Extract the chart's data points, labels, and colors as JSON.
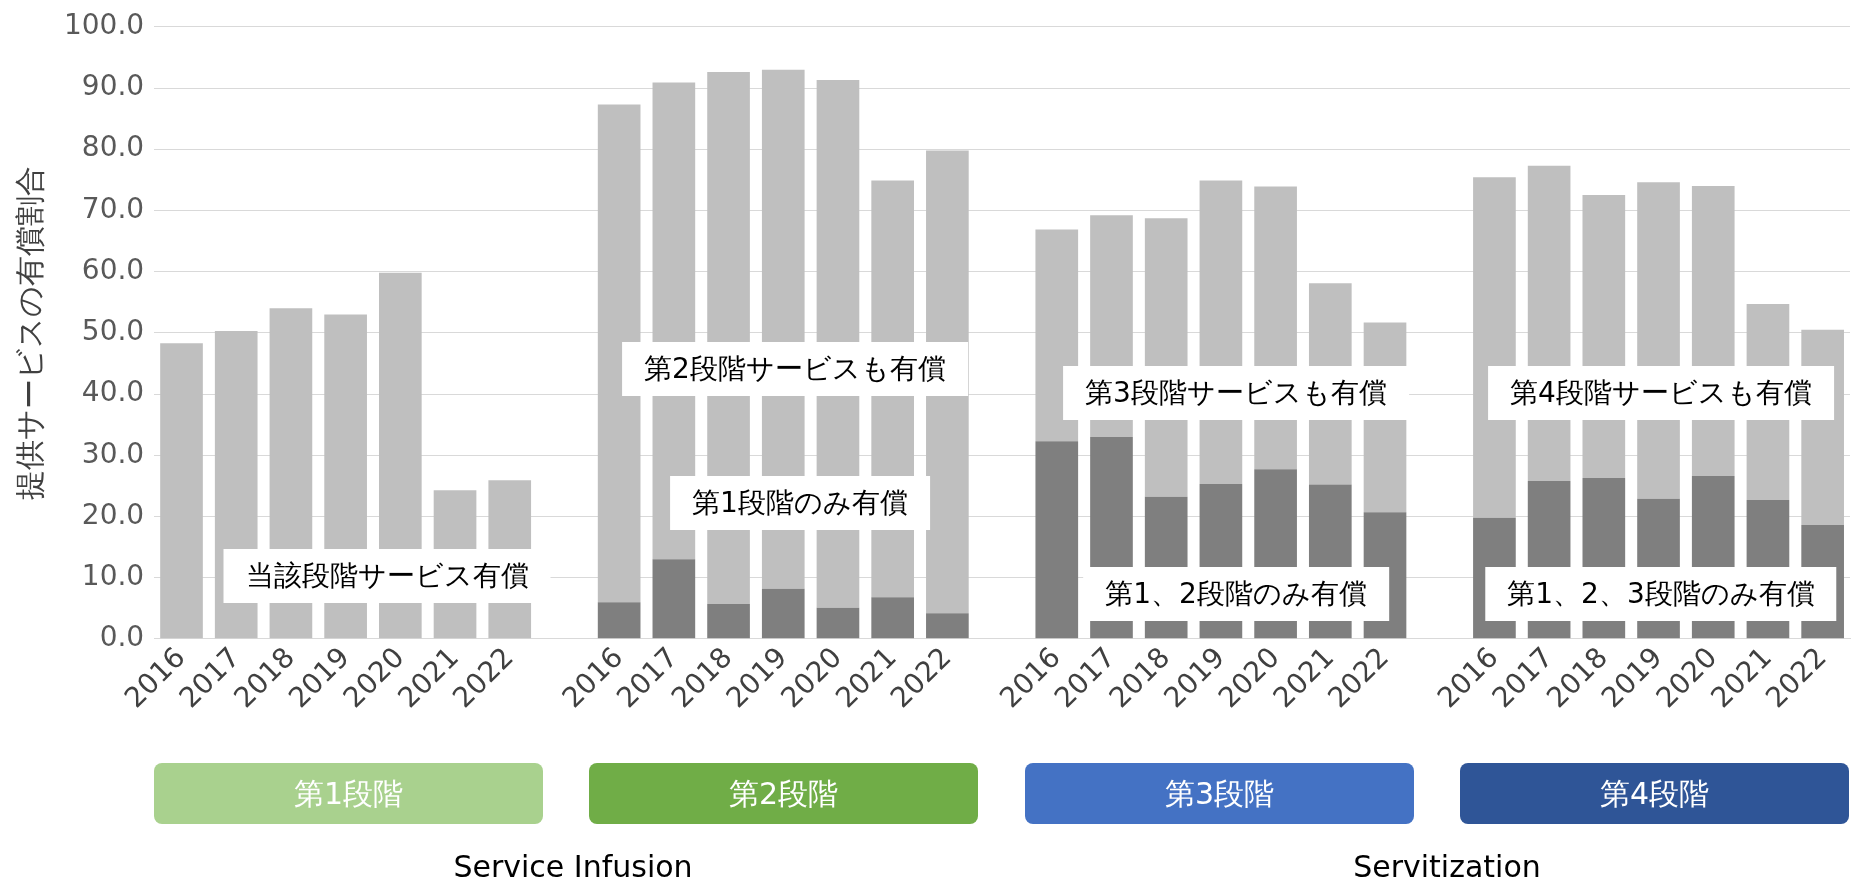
{
  "chart_data": {
    "type": "bar",
    "ylabel": "提供サービスの有償割合",
    "stacked": true,
    "legend": false,
    "grid": "y",
    "categories": [
      "2016",
      "2017",
      "2018",
      "2019",
      "2020",
      "2021",
      "2022",
      null,
      "2016",
      "2017",
      "2018",
      "2019",
      "2020",
      "2021",
      "2022",
      null,
      "2016",
      "2017",
      "2018",
      "2019",
      "2020",
      "2021",
      "2022",
      null,
      "2016",
      "2017",
      "2018",
      "2019",
      "2020",
      "2021",
      "2022"
    ],
    "ylim": [
      0,
      100
    ],
    "yticks": [
      {
        "value": 0,
        "label": "0.0"
      },
      {
        "value": 10,
        "label": "10.0"
      },
      {
        "value": 20,
        "label": "20.0"
      },
      {
        "value": 30,
        "label": "30.0"
      },
      {
        "value": 40,
        "label": "40.0"
      },
      {
        "value": 50,
        "label": "50.0"
      },
      {
        "value": 60,
        "label": "60.0"
      },
      {
        "value": 70,
        "label": "70.0"
      },
      {
        "value": 80,
        "label": "80.0"
      },
      {
        "value": 90,
        "label": "90.0"
      },
      {
        "value": 100,
        "label": "100.0"
      }
    ],
    "series": [
      {
        "color": "#7f7f7f",
        "values": [
          null,
          null,
          null,
          null,
          null,
          null,
          null,
          null,
          6.0,
          13.0,
          5.7,
          8.2,
          5.1,
          6.8,
          4.2,
          null,
          32.3,
          33.0,
          23.2,
          25.3,
          27.7,
          25.2,
          20.7,
          null,
          19.8,
          25.8,
          26.3,
          22.9,
          26.6,
          22.7,
          18.6
        ]
      },
      {
        "color": "#bfbfbf",
        "values": [
          48.3,
          50.3,
          54.0,
          53.0,
          59.8,
          24.3,
          25.9,
          null,
          81.3,
          77.9,
          86.9,
          84.8,
          86.2,
          68.1,
          75.6,
          null,
          34.6,
          36.2,
          45.5,
          49.6,
          46.2,
          32.9,
          31.0,
          null,
          55.6,
          51.5,
          46.2,
          51.7,
          47.4,
          32.0,
          31.9
        ]
      }
    ],
    "annotations": [
      "当該段階サービス有償",
      "第2段階サービスも有償",
      "第1段階のみ有償",
      "第3段階サービスも有償",
      "第1、2段階のみ有償",
      "第4段階サービスも有償",
      "第1、2、3段階のみ有償",
      "第1段階",
      "第2段階",
      "第3段階",
      "第4段階",
      "Service Infusion",
      "Servitization"
    ]
  }
}
